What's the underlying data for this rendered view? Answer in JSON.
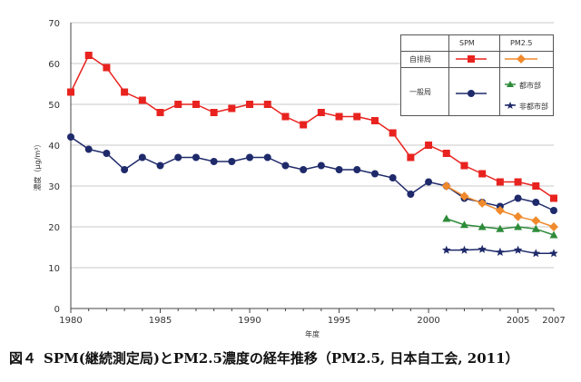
{
  "chart_data": {
    "type": "line",
    "xlabel": "年度",
    "ylabel": "濃度（μg/m³）",
    "ylim": [
      0,
      70
    ],
    "xlim": [
      1980,
      2007
    ],
    "yticks": [
      0,
      10,
      20,
      30,
      40,
      50,
      60,
      70
    ],
    "xticks": [
      "1980",
      "1985",
      "1990",
      "1995",
      "2000",
      "2005",
      "2007"
    ],
    "xtick_values": [
      1980,
      1985,
      1990,
      1995,
      2000,
      2005,
      2007
    ],
    "grid": true,
    "legend": {
      "col_spm": "SPM",
      "col_pm25": "PM2.5",
      "row_roadside": "自排局",
      "row_general": "一般局",
      "urban": "都市部",
      "nonurban": "非都市部"
    },
    "series": [
      {
        "name": "SPM 自排局",
        "color": "#e8231f",
        "marker": "square",
        "x": [
          1980,
          1981,
          1982,
          1983,
          1984,
          1985,
          1986,
          1987,
          1988,
          1989,
          1990,
          1991,
          1992,
          1993,
          1994,
          1995,
          1996,
          1997,
          1998,
          1999,
          2000,
          2001,
          2002,
          2003,
          2004,
          2005,
          2006,
          2007
        ],
        "y": [
          53,
          62,
          59,
          53,
          51,
          48,
          50,
          50,
          48,
          49,
          50,
          50,
          47,
          45,
          48,
          47,
          47,
          46,
          43,
          37,
          40,
          38,
          35,
          33,
          31,
          31,
          30,
          27
        ]
      },
      {
        "name": "SPM 一般局",
        "color": "#1f2a6b",
        "marker": "circle",
        "x": [
          1980,
          1981,
          1982,
          1983,
          1984,
          1985,
          1986,
          1987,
          1988,
          1989,
          1990,
          1991,
          1992,
          1993,
          1994,
          1995,
          1996,
          1997,
          1998,
          1999,
          2000,
          2001,
          2002,
          2003,
          2004,
          2005,
          2006,
          2007
        ],
        "y": [
          42,
          39,
          38,
          34,
          37,
          35,
          37,
          37,
          36,
          36,
          37,
          37,
          35,
          34,
          35,
          34,
          34,
          33,
          32,
          28,
          31,
          30,
          27,
          26,
          25,
          27,
          26,
          24
        ]
      },
      {
        "name": "PM2.5 自排局",
        "color": "#f08a2c",
        "marker": "diamond",
        "x": [
          2001,
          2002,
          2003,
          2004,
          2005,
          2006,
          2007
        ],
        "y": [
          30,
          27.5,
          25.8,
          24,
          22.5,
          21.5,
          20
        ]
      },
      {
        "name": "PM2.5 一般局 都市部",
        "color": "#2e8b3a",
        "marker": "triangle",
        "x": [
          2001,
          2002,
          2003,
          2004,
          2005,
          2006,
          2007
        ],
        "y": [
          22,
          20.5,
          20,
          19.5,
          20,
          19.5,
          18
        ]
      },
      {
        "name": "PM2.5 一般局 非都市部",
        "color": "#1f2a6b",
        "marker": "star",
        "x": [
          2001,
          2002,
          2003,
          2004,
          2005,
          2006,
          2007
        ],
        "y": [
          14.3,
          14.3,
          14.5,
          13.8,
          14.3,
          13.5,
          13.5
        ]
      }
    ]
  },
  "caption": {
    "figure_no": "図４",
    "text": "SPM(継続測定局)とPM2.5濃度の経年推移（PM2.5, 日本自工会, 2011）"
  }
}
